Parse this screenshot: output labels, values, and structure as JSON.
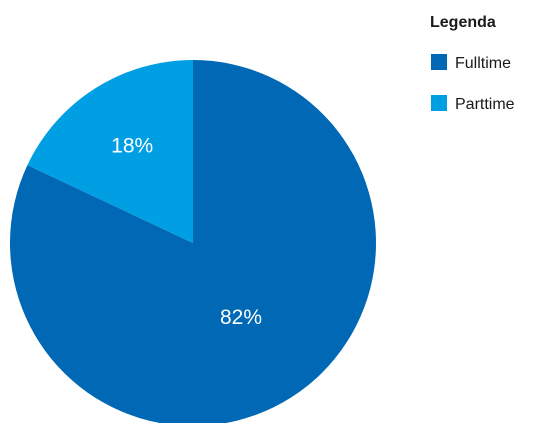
{
  "chart_data": {
    "type": "pie",
    "legend_title": "Legenda",
    "legend_position": "top-right",
    "slices": [
      {
        "name": "Fulltime",
        "value": 82,
        "label": "82%",
        "color": "#0068b4"
      },
      {
        "name": "Parttime",
        "value": 18,
        "label": "18%",
        "color": "#009fe3"
      }
    ]
  }
}
